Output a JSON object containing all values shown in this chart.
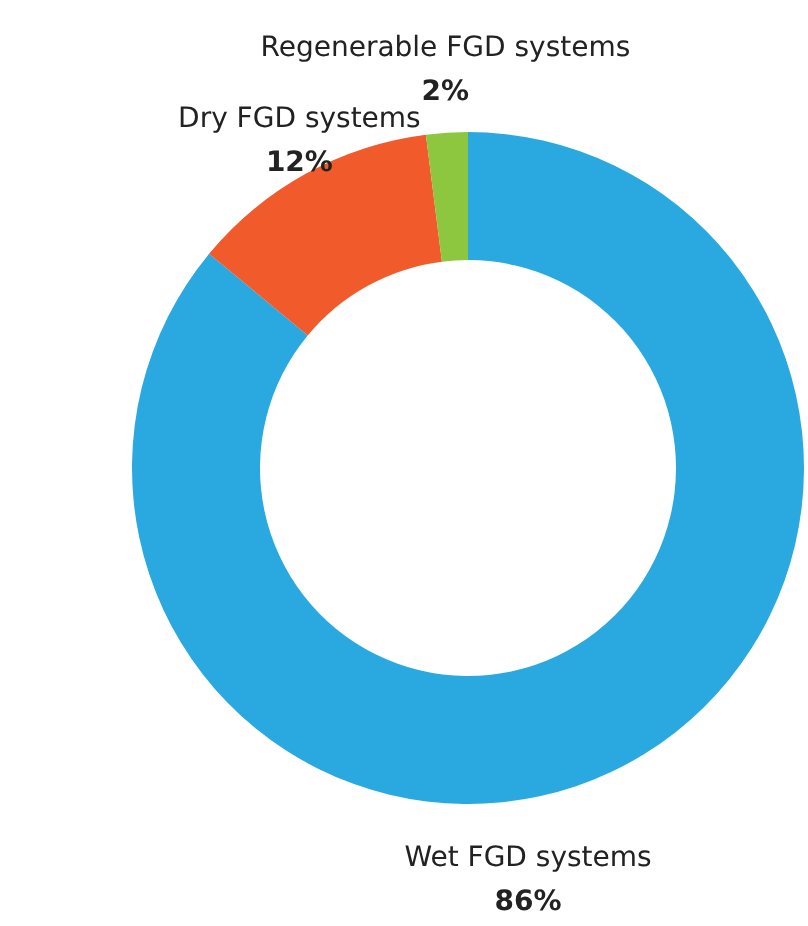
{
  "chart_data": {
    "type": "donut",
    "categories": [
      "Wet FGD systems",
      "Dry FGD systems",
      "Regenerable FGD systems"
    ],
    "values": [
      86,
      12,
      2
    ],
    "colors": [
      "#29a9e0",
      "#f15a2b",
      "#8dc63f"
    ],
    "value_labels": [
      "86%",
      "12%",
      "2%"
    ],
    "legend": false
  }
}
